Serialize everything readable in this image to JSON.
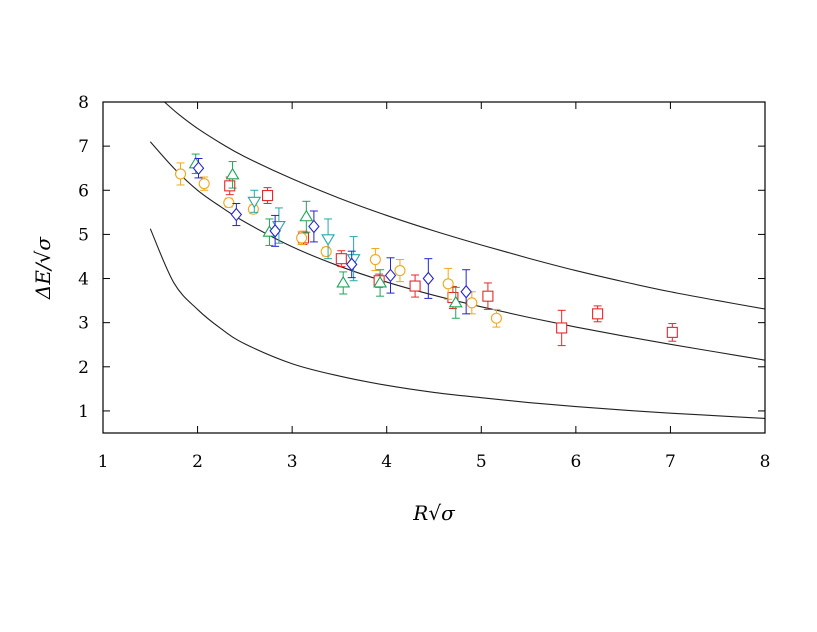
{
  "chart_data": {
    "type": "scatter",
    "title": "",
    "xlabel": "R√σ",
    "ylabel": "ΔE/√σ",
    "xlim": [
      1,
      8
    ],
    "ylim": [
      0.5,
      8
    ],
    "xticks": [
      "1",
      "2",
      "3",
      "4",
      "5",
      "6",
      "7",
      "8"
    ],
    "yticks": [
      "1",
      "2",
      "3",
      "4",
      "5",
      "6",
      "7",
      "8"
    ],
    "grid": false,
    "legend": "none",
    "curves": [
      {
        "x": [
          1.5,
          1.75,
          2.0,
          2.25,
          2.5,
          3.0,
          3.5,
          4.0,
          4.5,
          5.0,
          5.5,
          6.0,
          6.5,
          7.0,
          7.5,
          8.0
        ],
        "y": [
          5.13,
          3.9,
          3.3,
          2.86,
          2.52,
          2.07,
          1.79,
          1.58,
          1.42,
          1.3,
          1.19,
          1.1,
          1.02,
          0.95,
          0.89,
          0.83
        ],
        "color": "#222222"
      },
      {
        "x": [
          1.5,
          1.75,
          2.0,
          2.25,
          2.5,
          3.0,
          3.5,
          4.0,
          4.5,
          5.0,
          5.5,
          6.0,
          6.5,
          7.0,
          7.5,
          8.0
        ],
        "y": [
          7.1,
          6.5,
          6.0,
          5.62,
          5.28,
          4.72,
          4.28,
          3.92,
          3.62,
          3.36,
          3.12,
          2.9,
          2.7,
          2.51,
          2.33,
          2.15
        ],
        "color": "#222222"
      },
      {
        "x": [
          1.65,
          1.8,
          2.0,
          2.25,
          2.5,
          3.0,
          3.5,
          4.0,
          4.5,
          5.0,
          5.5,
          6.0,
          6.5,
          7.0,
          7.5,
          8.0
        ],
        "y": [
          8.0,
          7.72,
          7.4,
          7.06,
          6.76,
          6.26,
          5.82,
          5.43,
          5.08,
          4.76,
          4.46,
          4.18,
          3.93,
          3.7,
          3.5,
          3.31
        ],
        "color": "#222222"
      }
    ],
    "series": [
      {
        "marker": "square",
        "color": "#e8272a",
        "points": [
          {
            "x": 2.34,
            "y": 6.1,
            "err": 0.2
          },
          {
            "x": 2.74,
            "y": 5.88,
            "err": 0.18
          },
          {
            "x": 3.12,
            "y": 4.92,
            "err": 0.15
          },
          {
            "x": 3.52,
            "y": 4.45,
            "err": 0.18
          },
          {
            "x": 3.92,
            "y": 3.95,
            "err": 0.15
          },
          {
            "x": 4.3,
            "y": 3.83,
            "err": 0.25
          },
          {
            "x": 4.7,
            "y": 3.57,
            "err": 0.25
          },
          {
            "x": 5.07,
            "y": 3.6,
            "err": 0.3
          },
          {
            "x": 5.85,
            "y": 2.88,
            "err": 0.4
          },
          {
            "x": 6.23,
            "y": 3.2,
            "err": 0.18
          },
          {
            "x": 7.02,
            "y": 2.78,
            "err": 0.2
          }
        ]
      },
      {
        "marker": "circle",
        "color": "#f0a81c",
        "points": [
          {
            "x": 1.82,
            "y": 6.37,
            "err": 0.25
          },
          {
            "x": 2.07,
            "y": 6.15,
            "err": 0.15
          },
          {
            "x": 2.33,
            "y": 5.72,
            "err": 0.1
          },
          {
            "x": 2.59,
            "y": 5.57,
            "err": 0.1
          },
          {
            "x": 3.1,
            "y": 4.92,
            "err": 0.15
          },
          {
            "x": 3.36,
            "y": 4.61,
            "err": 0.1
          },
          {
            "x": 3.88,
            "y": 4.43,
            "err": 0.25
          },
          {
            "x": 4.14,
            "y": 4.18,
            "err": 0.25
          },
          {
            "x": 4.65,
            "y": 3.88,
            "err": 0.35
          },
          {
            "x": 4.9,
            "y": 3.45,
            "err": 0.25
          },
          {
            "x": 5.16,
            "y": 3.1,
            "err": 0.2
          }
        ]
      },
      {
        "marker": "triangle-up",
        "color": "#22a35a",
        "points": [
          {
            "x": 1.98,
            "y": 6.6,
            "err": 0.22
          },
          {
            "x": 2.37,
            "y": 6.35,
            "err": 0.3
          },
          {
            "x": 2.76,
            "y": 5.05,
            "err": 0.3
          },
          {
            "x": 3.15,
            "y": 5.4,
            "err": 0.35
          },
          {
            "x": 3.54,
            "y": 3.9,
            "err": 0.25
          },
          {
            "x": 3.93,
            "y": 3.9,
            "err": 0.3
          },
          {
            "x": 4.73,
            "y": 3.45,
            "err": 0.35
          }
        ]
      },
      {
        "marker": "triangle-down",
        "color": "#27a8a8",
        "points": [
          {
            "x": 2.6,
            "y": 5.75,
            "err": 0.25
          },
          {
            "x": 2.86,
            "y": 5.2,
            "err": 0.4
          },
          {
            "x": 3.38,
            "y": 4.9,
            "err": 0.45
          },
          {
            "x": 3.65,
            "y": 4.45,
            "err": 0.5
          }
        ]
      },
      {
        "marker": "diamond",
        "color": "#2424d0",
        "points": [
          {
            "x": 2.01,
            "y": 6.5,
            "err": 0.22
          },
          {
            "x": 2.41,
            "y": 5.45,
            "err": 0.25
          },
          {
            "x": 2.82,
            "y": 5.08,
            "err": 0.35
          },
          {
            "x": 3.23,
            "y": 5.18,
            "err": 0.35
          },
          {
            "x": 3.63,
            "y": 4.32,
            "err": 0.3
          },
          {
            "x": 4.04,
            "y": 4.07,
            "err": 0.4
          },
          {
            "x": 4.44,
            "y": 4.0,
            "err": 0.45
          },
          {
            "x": 4.84,
            "y": 3.7,
            "err": 0.5
          }
        ]
      }
    ]
  }
}
